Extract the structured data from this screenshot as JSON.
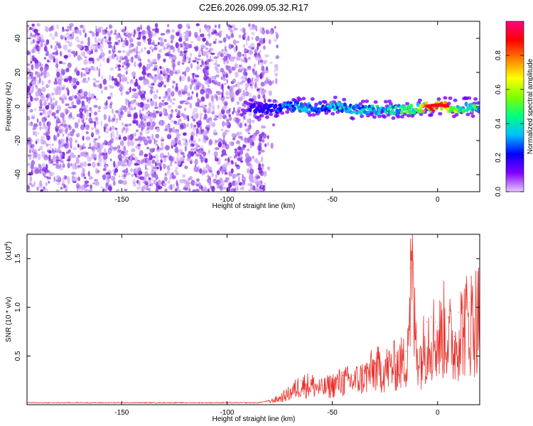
{
  "figure": {
    "title": "C2E6.2026.099.05.32.R17"
  },
  "chart_data": [
    {
      "type": "heatmap",
      "title": "C2E6.2026.099.05.32.R17",
      "xlabel": "Height of straight line (km)",
      "ylabel": "Frequency (Hz)",
      "xlim": [
        -195,
        20
      ],
      "ylim": [
        -50,
        50
      ],
      "x_ticks": [
        -150,
        -100,
        -50,
        0
      ],
      "y_ticks": [
        -40,
        -20,
        0,
        20,
        40
      ],
      "grid": false,
      "colorbar": {
        "label": "Normalized spectral amplitude",
        "range": [
          0.0,
          1.0
        ],
        "ticks": [
          0.0,
          0.2,
          0.4,
          0.6,
          0.8
        ],
        "colormap": "rainbow",
        "colors": [
          "#e8c8ff",
          "#8000ff",
          "#0000ff",
          "#00c0ff",
          "#00ff80",
          "#80ff00",
          "#ffff00",
          "#ff8000",
          "#ff0000",
          "#ff0080"
        ]
      },
      "regions": {
        "noise": {
          "x_range": [
            -195,
            -82
          ],
          "y_range": [
            -50,
            48
          ],
          "level": "0.0-0.1"
        },
        "signal": {
          "x_range": [
            -93,
            20
          ],
          "center_hz": 0,
          "half_width_hz": 4
        }
      },
      "signal_track": [
        {
          "x": -90,
          "freq_hz": -1.0,
          "amplitude": 0.05
        },
        {
          "x": -80,
          "freq_hz": -1.0,
          "amplitude": 0.25
        },
        {
          "x": -70,
          "freq_hz": 0.0,
          "amplitude": 0.35
        },
        {
          "x": -60,
          "freq_hz": -1.0,
          "amplitude": 0.35
        },
        {
          "x": -50,
          "freq_hz": 0.0,
          "amplitude": 0.4
        },
        {
          "x": -40,
          "freq_hz": -2.0,
          "amplitude": 0.4
        },
        {
          "x": -30,
          "freq_hz": -2.0,
          "amplitude": 0.45
        },
        {
          "x": -20,
          "freq_hz": -2.0,
          "amplitude": 0.45
        },
        {
          "x": -10,
          "freq_hz": -1.0,
          "amplitude": 0.6
        },
        {
          "x": 0,
          "freq_hz": 0.5,
          "amplitude": 1.0
        },
        {
          "x": 10,
          "freq_hz": -1.0,
          "amplitude": 0.55
        },
        {
          "x": 18,
          "freq_hz": 0.0,
          "amplitude": 0.5
        }
      ]
    },
    {
      "type": "line",
      "xlabel": "Height of straight line (km)",
      "ylabel": "SNR (10 * v/v)",
      "y_scale_label": "(x10",
      "y_scale_exponent": "4",
      "xlim": [
        -195,
        20
      ],
      "ylim": [
        0,
        1.75
      ],
      "x_ticks": [
        -150,
        -100,
        -50,
        0
      ],
      "y_ticks": [
        0.5,
        1.0,
        1.5
      ],
      "y_tick_labels": [
        "0.5",
        "1.0",
        "1.5"
      ],
      "color": "#e8312a",
      "grid": false,
      "series": [
        {
          "x": [
            -195,
            -175,
            -150,
            -125,
            -100,
            -85,
            -80,
            -75,
            -70,
            -65,
            -60,
            -55,
            -50,
            -45,
            -40,
            -35,
            -30,
            -25,
            -20,
            -15,
            -13,
            -12,
            -11,
            -10,
            -8,
            -5,
            -3,
            -1,
            0,
            3,
            5,
            8,
            10,
            12,
            15,
            18,
            20
          ],
          "values": [
            0.02,
            0.02,
            0.02,
            0.02,
            0.02,
            0.02,
            0.04,
            0.08,
            0.15,
            0.25,
            0.25,
            0.2,
            0.25,
            0.3,
            0.3,
            0.35,
            0.45,
            0.45,
            0.5,
            0.55,
            1.4,
            1.7,
            1.0,
            0.75,
            0.6,
            0.85,
            0.9,
            0.85,
            0.8,
            0.95,
            0.9,
            0.7,
            0.95,
            1.0,
            1.05,
            1.1,
            1.15
          ]
        }
      ]
    }
  ]
}
